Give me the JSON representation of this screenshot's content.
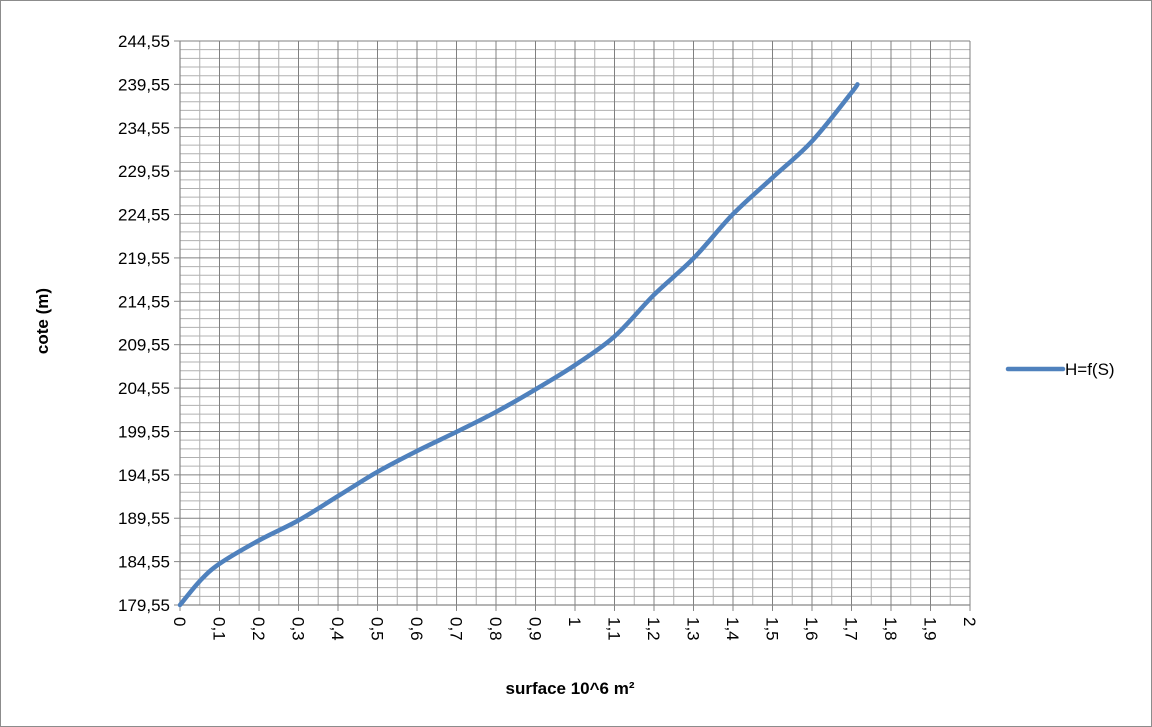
{
  "chart_data": {
    "type": "line",
    "xlabel": "surface 10^6 m²",
    "ylabel": "cote (m)",
    "xlim": [
      0,
      2
    ],
    "ylim": [
      179.55,
      244.55
    ],
    "x_ticks": [
      "0",
      "0,1",
      "0,2",
      "0,3",
      "0,4",
      "0,5",
      "0,6",
      "0,7",
      "0,8",
      "0,9",
      "1",
      "1,1",
      "1,2",
      "1,3",
      "1,4",
      "1,5",
      "1,6",
      "1,7",
      "1,8",
      "1,9",
      "2"
    ],
    "y_ticks": [
      "179,55",
      "184,55",
      "189,55",
      "194,55",
      "199,55",
      "204,55",
      "209,55",
      "214,55",
      "219,55",
      "224,55",
      "229,55",
      "234,55",
      "239,55",
      "244,55"
    ],
    "grid": true,
    "legend_position": "right",
    "series": [
      {
        "name": "H=f(S)",
        "color": "#4F81BD",
        "x": [
          0,
          0.05,
          0.1,
          0.2,
          0.3,
          0.4,
          0.5,
          0.6,
          0.7,
          0.8,
          0.9,
          1.0,
          1.1,
          1.2,
          1.3,
          1.4,
          1.5,
          1.6,
          1.7,
          1.715
        ],
        "y": [
          179.55,
          182.3,
          184.3,
          187.0,
          189.3,
          192.1,
          194.9,
          197.3,
          199.5,
          201.8,
          204.4,
          207.2,
          210.5,
          215.3,
          219.5,
          224.6,
          228.8,
          233.0,
          238.6,
          239.55
        ]
      }
    ]
  }
}
